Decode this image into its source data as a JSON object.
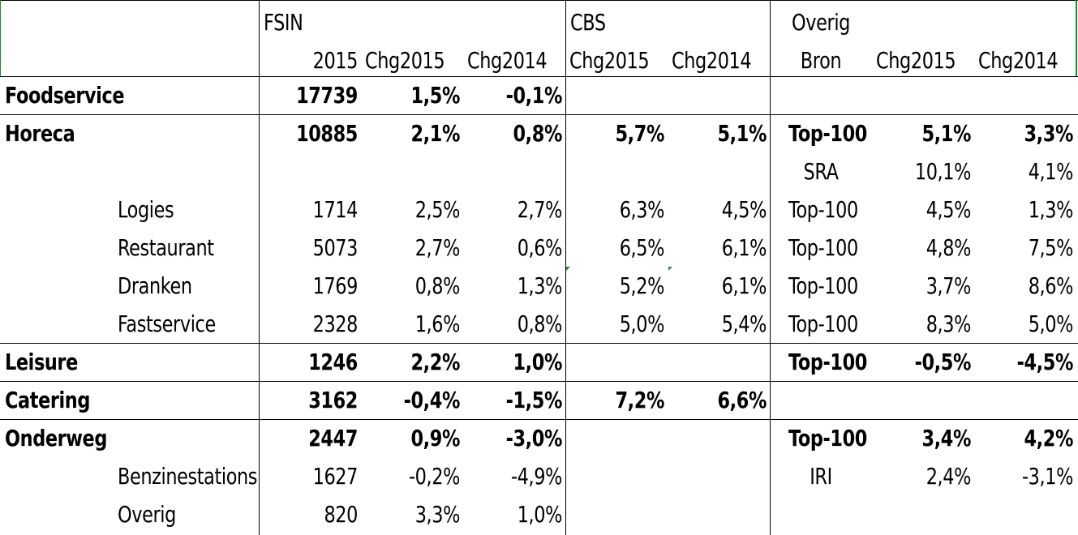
{
  "header": {
    "group_fsin": "FSIN",
    "group_cbs": "CBS",
    "group_overig": "Overig",
    "columns": [
      "2015",
      "Chg2015",
      "Chg2014",
      "Chg2015",
      "Chg2014",
      "Bron",
      "Chg2015",
      "Chg2014"
    ]
  },
  "rows": [
    {
      "label": "Foodservice",
      "bold": true,
      "v2015": "17739",
      "fsin_chg2015": "1,5%",
      "fsin_chg2014": "-0,1%",
      "cbs_chg2015": "",
      "cbs_chg2014": "",
      "bron": "",
      "ov_chg2015": "",
      "ov_chg2014": ""
    },
    {
      "label": "Horeca",
      "bold": true,
      "v2015": "10885",
      "fsin_chg2015": "2,1%",
      "fsin_chg2014": "0,8%",
      "cbs_chg2015": "5,7%",
      "cbs_chg2014": "5,1%",
      "bron": "Top-100",
      "ov_chg2015": "5,1%",
      "ov_chg2014": "3,3%"
    },
    {
      "label": "",
      "bold": false,
      "v2015": "",
      "fsin_chg2015": "",
      "fsin_chg2014": "",
      "cbs_chg2015": "",
      "cbs_chg2014": "",
      "bron": "SRA",
      "ov_chg2015": "10,1%",
      "ov_chg2014": "4,1%"
    },
    {
      "label": "Logies",
      "bold": false,
      "v2015": "1714",
      "fsin_chg2015": "2,5%",
      "fsin_chg2014": "2,7%",
      "cbs_chg2015": "6,3%",
      "cbs_chg2014": "4,5%",
      "bron": "Top-100",
      "ov_chg2015": "4,5%",
      "ov_chg2014": "1,3%"
    },
    {
      "label": "Restaurant",
      "bold": false,
      "v2015": "5073",
      "fsin_chg2015": "2,7%",
      "fsin_chg2014": "0,6%",
      "cbs_chg2015": "6,5%",
      "cbs_chg2014": "6,1%",
      "bron": "Top-100",
      "ov_chg2015": "4,8%",
      "ov_chg2014": "7,5%"
    },
    {
      "label": "Dranken",
      "bold": false,
      "v2015": "1769",
      "fsin_chg2015": "0,8%",
      "fsin_chg2014": "1,3%",
      "cbs_chg2015": "5,2%",
      "cbs_chg2014": "6,1%",
      "bron": "Top-100",
      "ov_chg2015": "3,7%",
      "ov_chg2014": "8,6%"
    },
    {
      "label": "Fastservice",
      "bold": false,
      "v2015": "2328",
      "fsin_chg2015": "1,6%",
      "fsin_chg2014": "0,8%",
      "cbs_chg2015": "5,0%",
      "cbs_chg2014": "5,4%",
      "bron": "Top-100",
      "ov_chg2015": "8,3%",
      "ov_chg2014": "5,0%"
    },
    {
      "label": "Leisure",
      "bold": true,
      "v2015": "1246",
      "fsin_chg2015": "2,2%",
      "fsin_chg2014": "1,0%",
      "cbs_chg2015": "",
      "cbs_chg2014": "",
      "bron": "Top-100",
      "ov_chg2015": "-0,5%",
      "ov_chg2014": "-4,5%"
    },
    {
      "label": "Catering",
      "bold": true,
      "v2015": "3162",
      "fsin_chg2015": "-0,4%",
      "fsin_chg2014": "-1,5%",
      "cbs_chg2015": "7,2%",
      "cbs_chg2014": "6,6%",
      "bron": "",
      "ov_chg2015": "",
      "ov_chg2014": ""
    },
    {
      "label": "Onderweg",
      "bold": true,
      "v2015": "2447",
      "fsin_chg2015": "0,9%",
      "fsin_chg2014": "-3,0%",
      "cbs_chg2015": "",
      "cbs_chg2014": "",
      "bron": "Top-100",
      "ov_chg2015": "3,4%",
      "ov_chg2014": "4,2%"
    },
    {
      "label": "Benzinestations",
      "bold": false,
      "v2015": "1627",
      "fsin_chg2015": "-0,2%",
      "fsin_chg2014": "-4,9%",
      "cbs_chg2015": "",
      "cbs_chg2014": "",
      "bron": "IRI",
      "ov_chg2015": "2,4%",
      "ov_chg2014": "-3,1%"
    },
    {
      "label": "Overig",
      "bold": false,
      "v2015": "820",
      "fsin_chg2015": "3,3%",
      "fsin_chg2014": "1,0%",
      "cbs_chg2015": "",
      "cbs_chg2014": "",
      "bron": "",
      "ov_chg2015": "",
      "ov_chg2014": ""
    }
  ],
  "colors": {
    "grid": "#000000",
    "comment_marker": "#1a8c3a"
  }
}
